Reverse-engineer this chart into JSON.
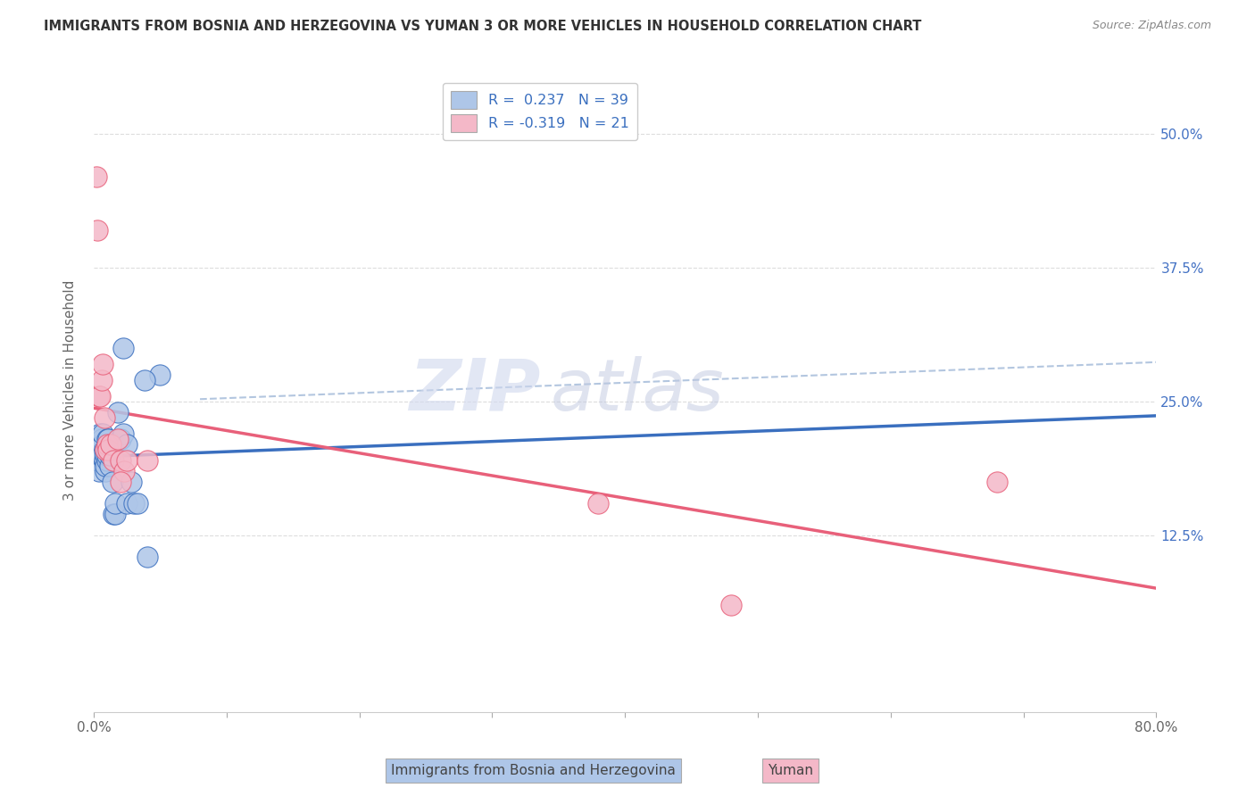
{
  "title": "IMMIGRANTS FROM BOSNIA AND HERZEGOVINA VS YUMAN 3 OR MORE VEHICLES IN HOUSEHOLD CORRELATION CHART",
  "source": "Source: ZipAtlas.com",
  "ylabel": "3 or more Vehicles in Household",
  "ytick_labels": [
    "12.5%",
    "25.0%",
    "37.5%",
    "50.0%"
  ],
  "ytick_values": [
    0.125,
    0.25,
    0.375,
    0.5
  ],
  "xlim": [
    0.0,
    0.8
  ],
  "ylim": [
    -0.04,
    0.56
  ],
  "blue_r": 0.237,
  "blue_n": 39,
  "pink_r": -0.319,
  "pink_n": 21,
  "blue_scatter_x": [
    0.003,
    0.004,
    0.005,
    0.005,
    0.005,
    0.006,
    0.006,
    0.007,
    0.007,
    0.008,
    0.008,
    0.009,
    0.009,
    0.009,
    0.01,
    0.01,
    0.01,
    0.01,
    0.011,
    0.011,
    0.012,
    0.012,
    0.013,
    0.014,
    0.015,
    0.016,
    0.016,
    0.018,
    0.02,
    0.022,
    0.025,
    0.025,
    0.028,
    0.03,
    0.033,
    0.04,
    0.05,
    0.038,
    0.022
  ],
  "blue_scatter_y": [
    0.195,
    0.185,
    0.21,
    0.2,
    0.22,
    0.2,
    0.215,
    0.21,
    0.22,
    0.205,
    0.195,
    0.185,
    0.19,
    0.2,
    0.195,
    0.2,
    0.205,
    0.215,
    0.21,
    0.215,
    0.19,
    0.2,
    0.205,
    0.175,
    0.145,
    0.145,
    0.155,
    0.24,
    0.215,
    0.22,
    0.21,
    0.155,
    0.175,
    0.155,
    0.155,
    0.105,
    0.275,
    0.27,
    0.3
  ],
  "pink_scatter_x": [
    0.002,
    0.003,
    0.004,
    0.005,
    0.006,
    0.007,
    0.008,
    0.009,
    0.01,
    0.011,
    0.013,
    0.015,
    0.018,
    0.02,
    0.023,
    0.025,
    0.02,
    0.04,
    0.38,
    0.68,
    0.48
  ],
  "pink_scatter_y": [
    0.46,
    0.41,
    0.255,
    0.255,
    0.27,
    0.285,
    0.235,
    0.205,
    0.21,
    0.205,
    0.21,
    0.195,
    0.215,
    0.195,
    0.185,
    0.195,
    0.175,
    0.195,
    0.155,
    0.175,
    0.06
  ],
  "background_color": "#ffffff",
  "blue_color": "#aec6e8",
  "blue_line_color": "#3a6fbf",
  "pink_color": "#f4b8c8",
  "pink_line_color": "#e8607a",
  "dashed_line_color": "#a0b8d8",
  "grid_color": "#dddddd",
  "watermark_zip": "ZIP",
  "watermark_atlas": "atlas",
  "legend_label_blue": "Immigrants from Bosnia and Herzegovina",
  "legend_label_pink": "Yuman"
}
